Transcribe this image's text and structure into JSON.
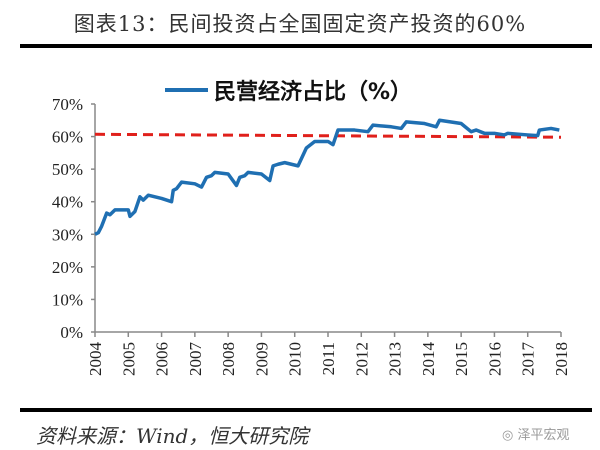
{
  "header": {
    "title": "图表13：民间投资占全国固定资产投资的60%"
  },
  "footer": {
    "source": "资料来源：Wind，恒大研究院",
    "watermark": "泽平宏观"
  },
  "chart_data": {
    "type": "line",
    "title": "",
    "legend": {
      "label": "民营经济占比（%）",
      "placement": "top"
    },
    "xlabel": "",
    "ylabel": "",
    "xlim": [
      2004,
      2018
    ],
    "ylim": [
      0,
      70
    ],
    "x_ticks": [
      "2004",
      "2005",
      "2006",
      "2007",
      "2008",
      "2009",
      "2010",
      "2011",
      "2012",
      "2013",
      "2014",
      "2015",
      "2016",
      "2017",
      "2018"
    ],
    "y_ticks": [
      "0%",
      "10%",
      "20%",
      "30%",
      "40%",
      "50%",
      "60%",
      "70%"
    ],
    "series": [
      {
        "name": "民营经济占比（%）",
        "color": "#1f6fb2",
        "x": [
          2004.0,
          2004.1,
          2004.2,
          2004.35,
          2004.45,
          2004.6,
          2004.65,
          2005.0,
          2005.05,
          2005.2,
          2005.35,
          2005.45,
          2005.6,
          2006.0,
          2006.3,
          2006.35,
          2006.45,
          2006.6,
          2007.0,
          2007.2,
          2007.35,
          2007.5,
          2007.6,
          2008.0,
          2008.25,
          2008.35,
          2008.5,
          2008.6,
          2009.0,
          2009.25,
          2009.35,
          2009.5,
          2009.7,
          2010.1,
          2010.35,
          2010.6,
          2011.0,
          2011.15,
          2011.3,
          2011.8,
          2012.2,
          2012.35,
          2012.9,
          2013.2,
          2013.35,
          2013.9,
          2014.25,
          2014.35,
          2015.0,
          2015.3,
          2015.45,
          2015.7,
          2016.0,
          2016.3,
          2016.4,
          2017.0,
          2017.3,
          2017.35,
          2017.7,
          2017.95
        ],
        "y": [
          30,
          30.5,
          32.5,
          36.5,
          36,
          37.5,
          37.5,
          37.5,
          35.5,
          37,
          41.5,
          40.5,
          42,
          41,
          40,
          43.5,
          44,
          46,
          45.5,
          44.5,
          47.5,
          48,
          49,
          48.5,
          45,
          47.5,
          48,
          49,
          48.5,
          46.5,
          51,
          51.5,
          52,
          51,
          56.5,
          58.5,
          58.5,
          57.5,
          62,
          62,
          61.5,
          63.5,
          63,
          62.5,
          64.5,
          64,
          63,
          65,
          64,
          61.5,
          62,
          61,
          61,
          60.5,
          61,
          60.5,
          60.3,
          62,
          62.5,
          62
        ]
      },
      {
        "name": "60%参考线",
        "color": "#e0201b",
        "style": "dashed",
        "x": [
          2004,
          2018
        ],
        "y": [
          60.7,
          59.8
        ]
      }
    ],
    "grid": false
  }
}
